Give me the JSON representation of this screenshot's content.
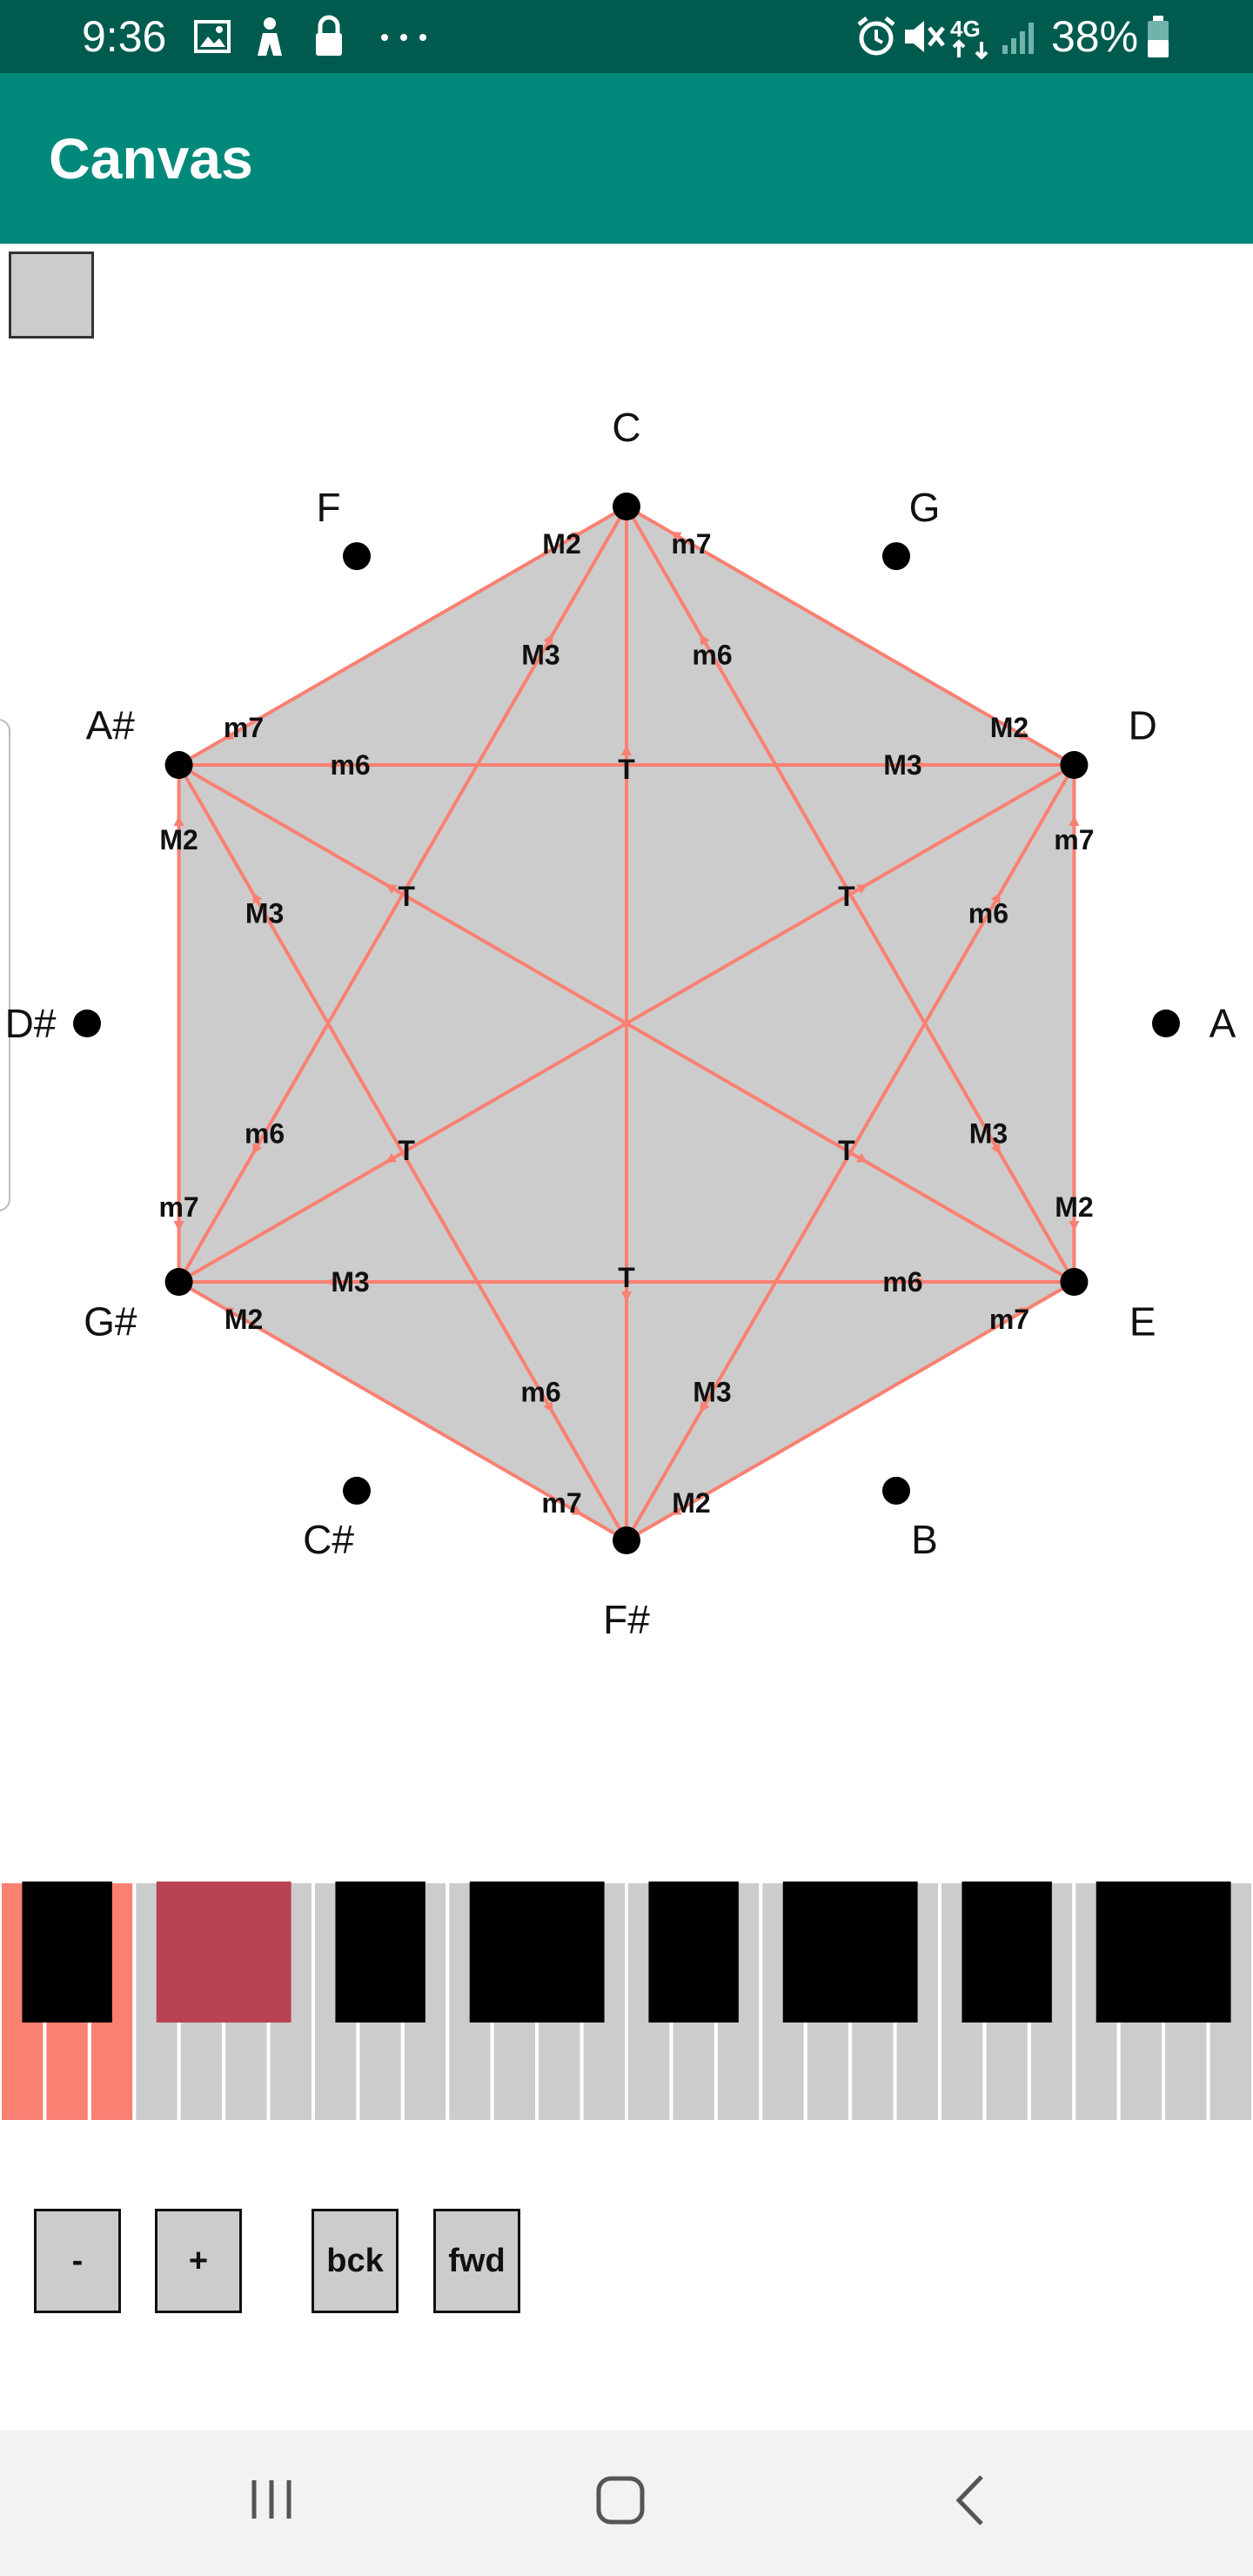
{
  "status_bar": {
    "time": "9:36",
    "battery": "38%",
    "left_icons": [
      "image-icon",
      "person-icon",
      "lock-icon",
      "more-icon"
    ],
    "right_icons": [
      "alarm-icon",
      "mute-icon",
      "4g-lte-icon",
      "signal-icon",
      "battery-icon"
    ]
  },
  "app_bar": {
    "title": "Canvas"
  },
  "wheel": {
    "notes": [
      "C",
      "G",
      "D",
      "A",
      "E",
      "B",
      "F#",
      "C#",
      "G#",
      "D#",
      "A#",
      "F"
    ],
    "active_notes": [
      "C",
      "D",
      "E",
      "F#",
      "G#",
      "A#"
    ],
    "fill_color": "#cccccc",
    "line_color": "#fa8072",
    "edges": [
      {
        "from": "A#",
        "to": "C",
        "label": "M2",
        "arrow_at": "C"
      },
      {
        "from": "A#",
        "to": "C",
        "label": "m7",
        "arrow_at": "A#"
      },
      {
        "from": "C",
        "to": "D",
        "label": "M2",
        "arrow_at": "D"
      },
      {
        "from": "C",
        "to": "D",
        "label": "m7",
        "arrow_at": "C"
      },
      {
        "from": "D",
        "to": "E",
        "label": "M2",
        "arrow_at": "E"
      },
      {
        "from": "D",
        "to": "E",
        "label": "m7",
        "arrow_at": "D"
      },
      {
        "from": "E",
        "to": "F#",
        "label": "M2",
        "arrow_at": "F#"
      },
      {
        "from": "E",
        "to": "F#",
        "label": "m7",
        "arrow_at": "E"
      },
      {
        "from": "F#",
        "to": "G#",
        "label": "M2",
        "arrow_at": "G#"
      },
      {
        "from": "F#",
        "to": "G#",
        "label": "m7",
        "arrow_at": "F#"
      },
      {
        "from": "G#",
        "to": "A#",
        "label": "M2",
        "arrow_at": "A#"
      },
      {
        "from": "G#",
        "to": "A#",
        "label": "m7",
        "arrow_at": "G#"
      },
      {
        "from": "A#",
        "to": "D",
        "label": "M3",
        "arrow_at": "D"
      },
      {
        "from": "A#",
        "to": "D",
        "label": "m6",
        "arrow_at": "A#"
      },
      {
        "from": "C",
        "to": "E",
        "label": "M3",
        "arrow_at": "E"
      },
      {
        "from": "C",
        "to": "E",
        "label": "m6",
        "arrow_at": "C"
      },
      {
        "from": "D",
        "to": "F#",
        "label": "M3",
        "arrow_at": "F#"
      },
      {
        "from": "D",
        "to": "F#",
        "label": "m6",
        "arrow_at": "D"
      },
      {
        "from": "E",
        "to": "G#",
        "label": "M3",
        "arrow_at": "G#"
      },
      {
        "from": "E",
        "to": "G#",
        "label": "m6",
        "arrow_at": "E"
      },
      {
        "from": "F#",
        "to": "A#",
        "label": "M3",
        "arrow_at": "A#"
      },
      {
        "from": "F#",
        "to": "A#",
        "label": "m6",
        "arrow_at": "F#"
      },
      {
        "from": "G#",
        "to": "C",
        "label": "M3",
        "arrow_at": "C"
      },
      {
        "from": "G#",
        "to": "C",
        "label": "m6",
        "arrow_at": "G#"
      },
      {
        "from": "C",
        "to": "F#",
        "label": "T",
        "arrow_at": "C"
      },
      {
        "from": "C",
        "to": "F#",
        "label": "T",
        "arrow_at": "F#"
      },
      {
        "from": "D",
        "to": "G#",
        "label": "T",
        "arrow_at": "D"
      },
      {
        "from": "D",
        "to": "G#",
        "label": "T",
        "arrow_at": "G#"
      },
      {
        "from": "E",
        "to": "A#",
        "label": "T",
        "arrow_at": "E"
      },
      {
        "from": "E",
        "to": "A#",
        "label": "T",
        "arrow_at": "A#"
      }
    ]
  },
  "piano": {
    "octaves": 4,
    "highlighted_white_keys": [
      0,
      1,
      2
    ],
    "highlighted_black_keys": [
      2,
      3,
      4
    ],
    "white_color": "#cccccc",
    "white_highlight_color": "#fa8072",
    "black_color": "#000000",
    "black_highlight_color": "#b84352"
  },
  "controls": {
    "minus_label": "-",
    "plus_label": "+",
    "back_label": "bck",
    "forward_label": "fwd"
  },
  "nav_bar": {
    "buttons": [
      "recent-apps-icon",
      "home-icon",
      "back-icon"
    ]
  }
}
